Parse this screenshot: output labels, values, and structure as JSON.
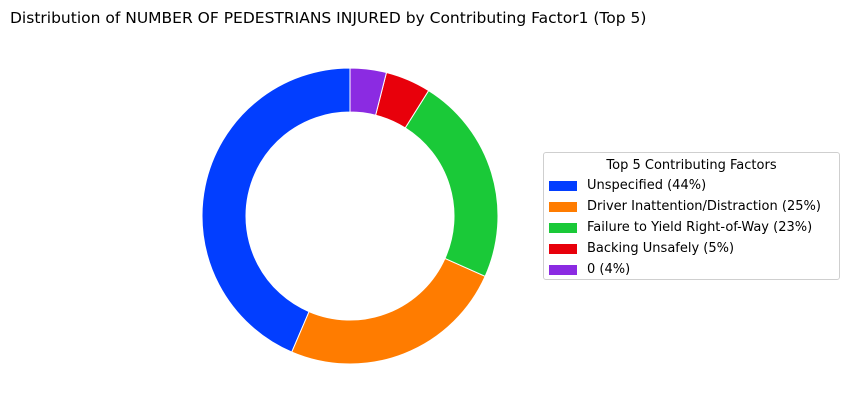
{
  "chart_data": {
    "type": "pie",
    "title": "Distribution of NUMBER OF PEDESTRIANS INJURED by Contributing Factor1 (Top 5)",
    "legend_title": "Top 5 Contributing Factors",
    "legend_position": "right",
    "donut": true,
    "slices": [
      {
        "label": "Unspecified (44%)",
        "value": 44,
        "color": "#023eff"
      },
      {
        "label": "Driver Inattention/Distraction (25%)",
        "value": 25,
        "color": "#ff7c00"
      },
      {
        "label": "Failure to Yield Right-of-Way (23%)",
        "value": 23,
        "color": "#1ac938"
      },
      {
        "label": "Backing Unsafely (5%)",
        "value": 5,
        "color": "#e8000b"
      },
      {
        "label": "0 (4%)",
        "value": 4,
        "color": "#8b2be2"
      }
    ]
  }
}
